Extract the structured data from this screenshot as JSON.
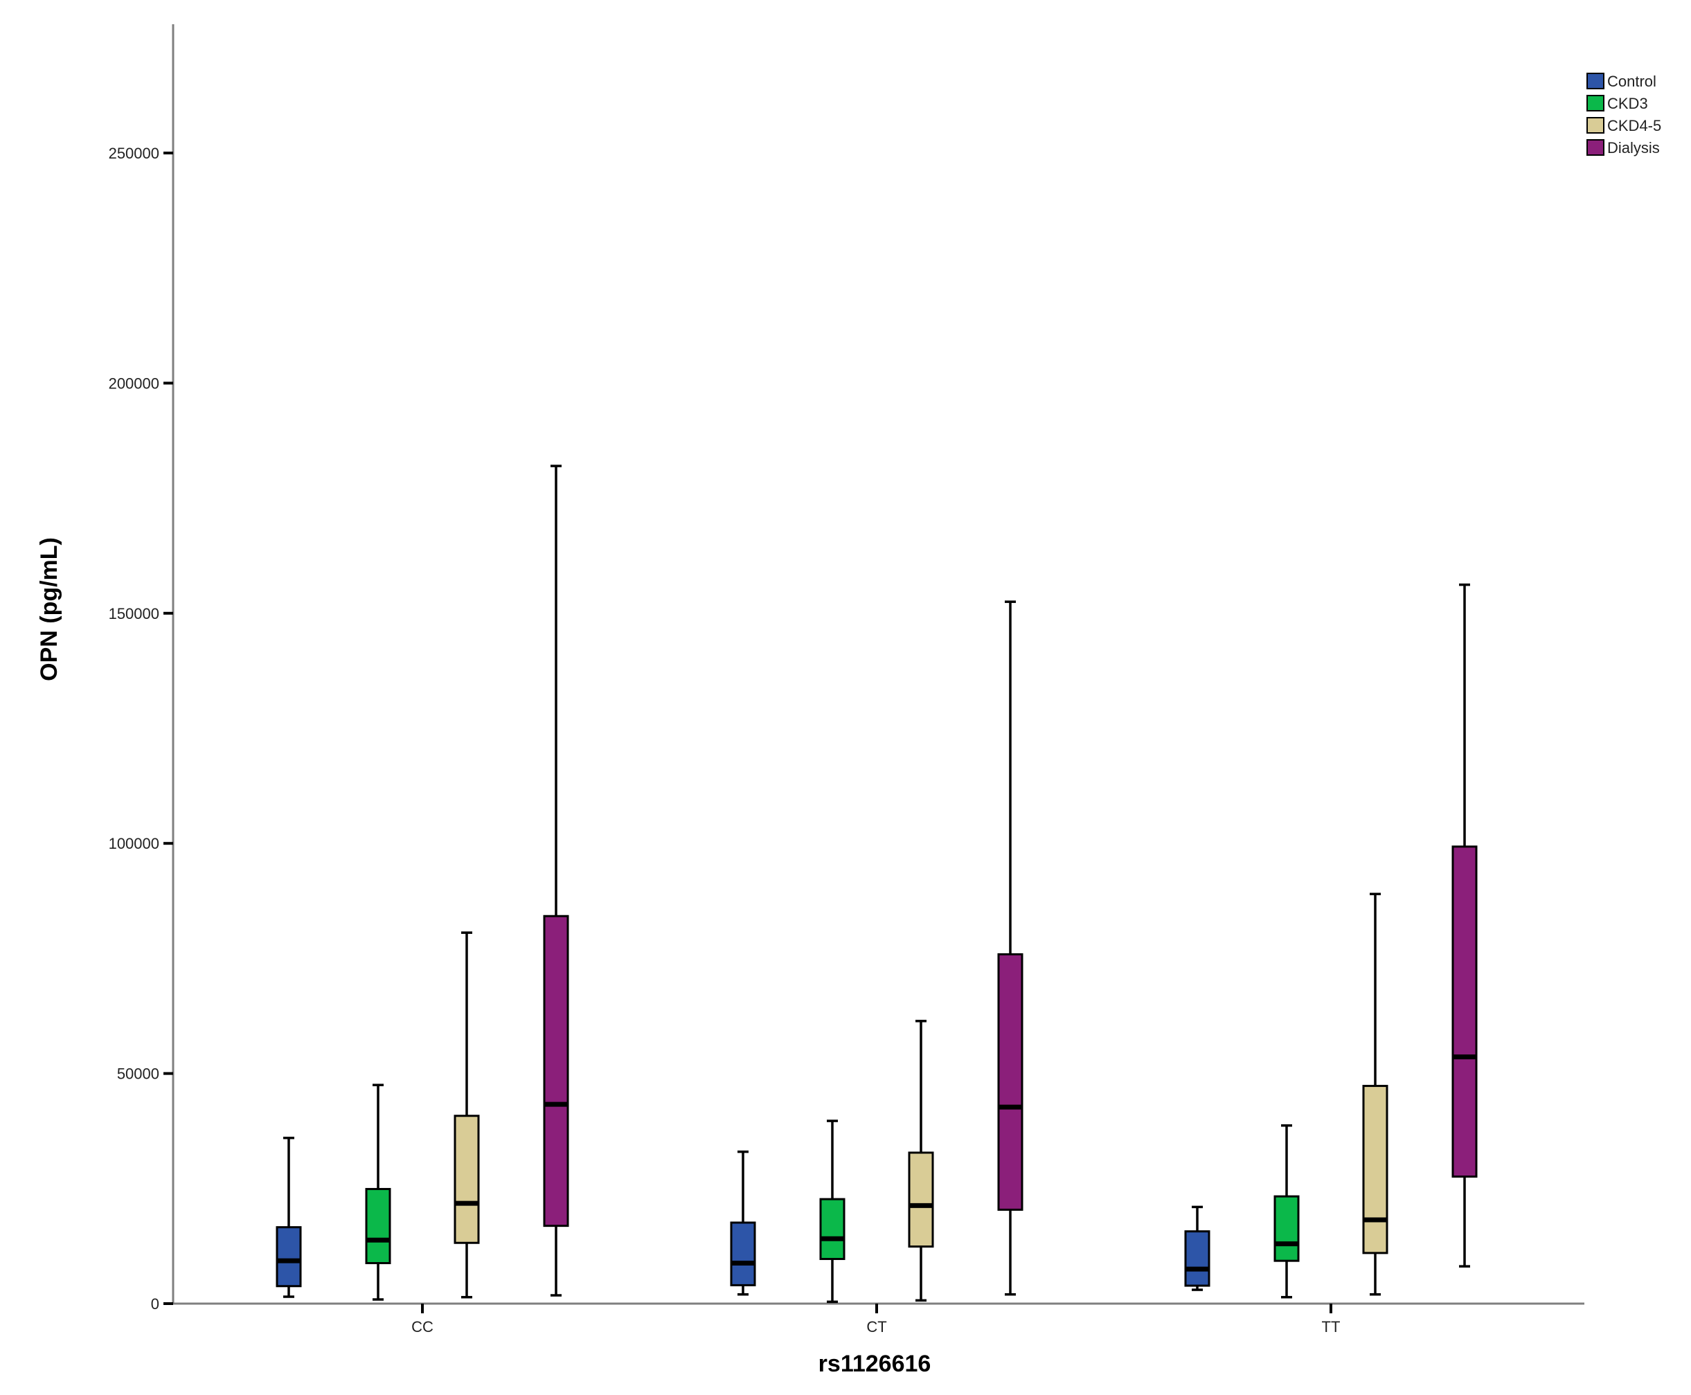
{
  "chart_data": {
    "type": "boxplot",
    "xlabel": "rs1126616",
    "ylabel": "OPN (pg/mL)",
    "ylim": [
      0,
      278000
    ],
    "yticks": [
      0,
      50000,
      100000,
      150000,
      200000,
      250000
    ],
    "ytick_labels": [
      "0",
      "50000",
      "100000",
      "150000",
      "200000",
      "250000"
    ],
    "categories": [
      "CC",
      "CT",
      "TT"
    ],
    "legend_position": "top-right",
    "series": [
      {
        "name": "Control",
        "color": "#2d55a8",
        "boxes": [
          {
            "min": 1500,
            "q1": 3800,
            "median": 9300,
            "q3": 16600,
            "max": 36000
          },
          {
            "min": 2000,
            "q1": 4000,
            "median": 8800,
            "q3": 17600,
            "max": 33000
          },
          {
            "min": 3000,
            "q1": 3900,
            "median": 7500,
            "q3": 15700,
            "max": 21000
          }
        ]
      },
      {
        "name": "CKD3",
        "color": "#0bb84a",
        "boxes": [
          {
            "min": 900,
            "q1": 8800,
            "median": 13800,
            "q3": 24900,
            "max": 47500
          },
          {
            "min": 400,
            "q1": 9700,
            "median": 14100,
            "q3": 22700,
            "max": 39700
          },
          {
            "min": 1400,
            "q1": 9300,
            "median": 13000,
            "q3": 23300,
            "max": 38700
          }
        ]
      },
      {
        "name": "CKD4-5",
        "color": "#d9cc96",
        "boxes": [
          {
            "min": 1400,
            "q1": 13200,
            "median": 21800,
            "q3": 40800,
            "max": 80600
          },
          {
            "min": 700,
            "q1": 12400,
            "median": 21300,
            "q3": 32800,
            "max": 61400
          },
          {
            "min": 2000,
            "q1": 11000,
            "median": 18200,
            "q3": 47300,
            "max": 89000
          }
        ]
      },
      {
        "name": "Dialysis",
        "color": "#8b1f7a",
        "boxes": [
          {
            "min": 1800,
            "q1": 16900,
            "median": 43300,
            "q3": 84200,
            "max": 182000
          },
          {
            "min": 2000,
            "q1": 20400,
            "median": 42700,
            "q3": 75900,
            "max": 152500
          },
          {
            "min": 8100,
            "q1": 27600,
            "median": 53600,
            "q3": 99300,
            "max": 156200
          }
        ]
      }
    ]
  }
}
